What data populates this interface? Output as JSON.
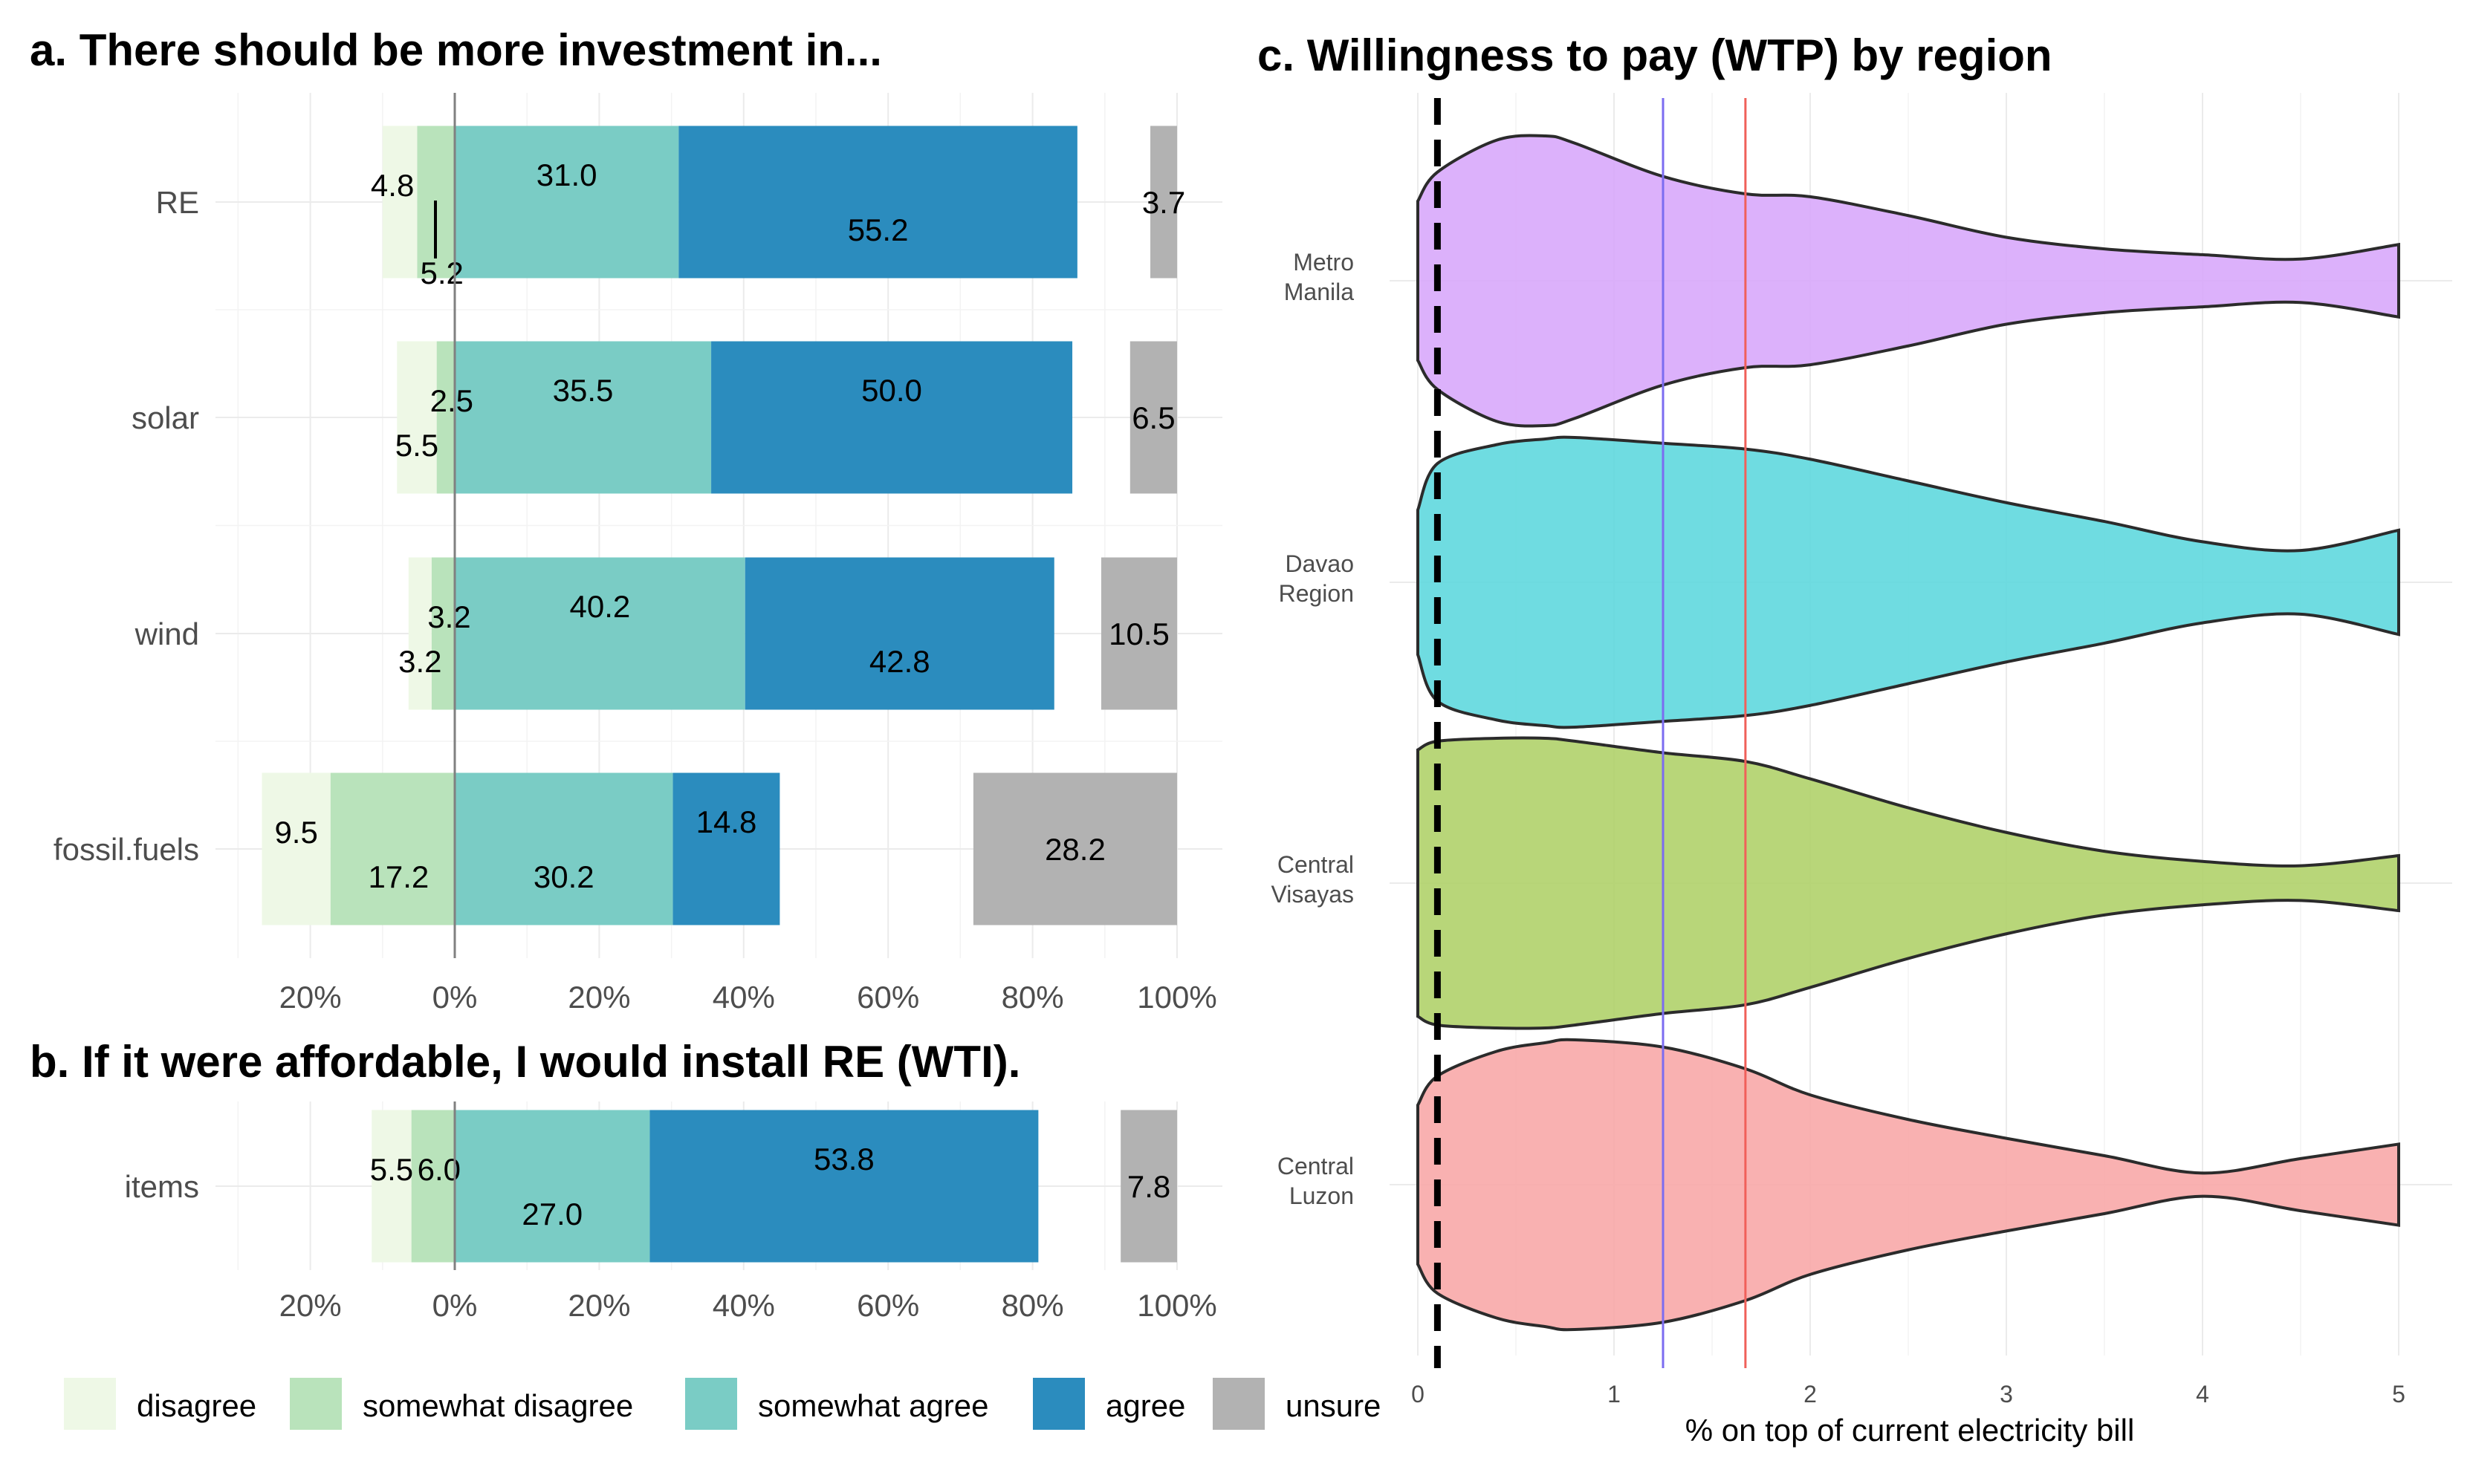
{
  "chart_data": [
    {
      "panel": "a",
      "type": "bar",
      "stacking": "diverging-stacked-horizontal",
      "title": "a. There should be more investment in...",
      "categories": [
        "RE",
        "solar",
        "wind",
        "fossil.fuels"
      ],
      "series": [
        {
          "name": "disagree",
          "values": [
            4.8,
            5.5,
            3.2,
            9.5
          ]
        },
        {
          "name": "somewhat disagree",
          "values": [
            5.2,
            2.5,
            3.2,
            17.2
          ]
        },
        {
          "name": "somewhat agree",
          "values": [
            31.0,
            35.5,
            40.2,
            30.2
          ]
        },
        {
          "name": "agree",
          "values": [
            55.2,
            50.0,
            42.8,
            14.8
          ]
        },
        {
          "name": "unsure",
          "values": [
            3.7,
            6.5,
            10.5,
            28.2
          ]
        }
      ],
      "x_ticks": [
        "20%",
        "0%",
        "20%",
        "40%",
        "60%",
        "80%",
        "100%"
      ],
      "xlim": [
        -30,
        106
      ]
    },
    {
      "panel": "b",
      "type": "bar",
      "stacking": "diverging-stacked-horizontal",
      "title": "b. If it were affordable, I would install RE (WTI).",
      "categories": [
        "items"
      ],
      "series": [
        {
          "name": "disagree",
          "values": [
            5.5
          ]
        },
        {
          "name": "somewhat disagree",
          "values": [
            6.0
          ]
        },
        {
          "name": "somewhat agree",
          "values": [
            27.0
          ]
        },
        {
          "name": "agree",
          "values": [
            53.8
          ]
        },
        {
          "name": "unsure",
          "values": [
            7.8
          ]
        }
      ],
      "x_ticks": [
        "20%",
        "0%",
        "20%",
        "40%",
        "60%",
        "80%",
        "100%"
      ],
      "xlim": [
        -30,
        106
      ]
    },
    {
      "panel": "c",
      "type": "violin",
      "title": "c. Willingness to pay (WTP) by region",
      "xlabel": "% on top of current electricity bill",
      "xlim": [
        0,
        5
      ],
      "x_ticks": [
        "0",
        "1",
        "2",
        "3",
        "4",
        "5"
      ],
      "categories": [
        "Metro Manila",
        "Davao Region",
        "Central Visayas",
        "Central Luzon"
      ],
      "reference_lines": [
        {
          "value": 0.1,
          "style": "dashed",
          "color": "#000000"
        },
        {
          "value": 1.25,
          "style": "solid",
          "color": "#7b6cf0"
        },
        {
          "value": 1.67,
          "style": "solid",
          "color": "#f0605a"
        }
      ],
      "density_x": [
        0,
        0.1,
        0.4,
        0.65,
        0.8,
        1.25,
        1.67,
        2.0,
        2.5,
        3.0,
        3.5,
        4.0,
        4.5,
        5.0
      ],
      "densities": [
        {
          "name": "Metro Manila",
          "color": "#d8a8fb",
          "half_width": [
            0.55,
            0.75,
            0.97,
            1.0,
            0.95,
            0.72,
            0.6,
            0.58,
            0.45,
            0.3,
            0.22,
            0.18,
            0.15,
            0.25
          ]
        },
        {
          "name": "Davao Region",
          "color": "#5fd8de",
          "half_width": [
            0.5,
            0.82,
            0.95,
            0.99,
            1.0,
            0.96,
            0.92,
            0.85,
            0.7,
            0.55,
            0.42,
            0.28,
            0.22,
            0.36
          ]
        },
        {
          "name": "Central Visayas",
          "color": "#b0d26a",
          "half_width": [
            0.92,
            0.98,
            1.0,
            1.0,
            0.98,
            0.9,
            0.84,
            0.72,
            0.52,
            0.35,
            0.22,
            0.15,
            0.12,
            0.19
          ]
        },
        {
          "name": "Central Luzon",
          "color": "#f8a9a8",
          "half_width": [
            0.55,
            0.75,
            0.92,
            0.98,
            1.0,
            0.95,
            0.8,
            0.62,
            0.45,
            0.32,
            0.2,
            0.08,
            0.18,
            0.28
          ]
        }
      ]
    }
  ],
  "legend": [
    {
      "label": "disagree",
      "color": "#eef8e6"
    },
    {
      "label": "somewhat disagree",
      "color": "#b9e3bb"
    },
    {
      "label": "somewhat agree",
      "color": "#7accc5"
    },
    {
      "label": "agree",
      "color": "#2b8cbe"
    },
    {
      "label": "unsure",
      "color": "#b2b2b2"
    }
  ]
}
